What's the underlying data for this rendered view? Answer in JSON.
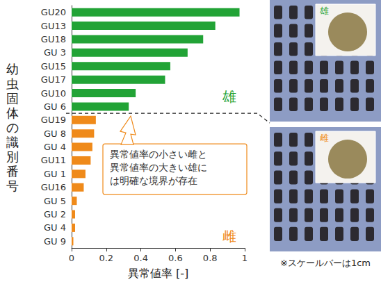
{
  "chart_data": {
    "type": "bar",
    "orientation": "horizontal",
    "categories": [
      "GU20",
      "GU13",
      "GU18",
      "GU 3",
      "GU15",
      "GU17",
      "GU10",
      "GU 6",
      "GU19",
      "GU 8",
      "GU 4",
      "GU11",
      "GU 1",
      "GU16",
      "GU 5",
      "GU 2",
      "GU 4",
      "GU 9"
    ],
    "values": [
      0.97,
      0.83,
      0.76,
      0.67,
      0.57,
      0.54,
      0.37,
      0.33,
      0.14,
      0.13,
      0.12,
      0.11,
      0.08,
      0.07,
      0.03,
      0.02,
      0.02,
      0.01
    ],
    "colors": [
      "#22a336",
      "#22a336",
      "#22a336",
      "#22a336",
      "#22a336",
      "#22a336",
      "#22a336",
      "#22a336",
      "#ef8a1a",
      "#ef8a1a",
      "#ef8a1a",
      "#ef8a1a",
      "#ef8a1a",
      "#ef8a1a",
      "#ef8a1a",
      "#ef8a1a",
      "#ef8a1a",
      "#ef8a1a"
    ],
    "xlabel": "異常値率 [-]",
    "ylabel": "幼虫固体の識別番号",
    "xlim": [
      0,
      1
    ],
    "xticks": [
      0,
      0.2,
      0.4,
      0.6,
      0.8,
      1
    ],
    "grid": false,
    "data_labels": false,
    "group_labels": [
      {
        "text": "雄",
        "color": "#22a336"
      },
      {
        "text": "雌",
        "color": "#ef8a1a"
      }
    ],
    "annotation": [
      "異常値率の小さい雌と",
      "異常値率の大きい雄に",
      "は明確な境界が存在"
    ]
  },
  "photo_panel": {
    "labels": [
      {
        "text": "雄",
        "color": "#22a336"
      },
      {
        "text": "雌",
        "color": "#ef8a1a"
      }
    ],
    "caption": "※スケールバーは1cm"
  }
}
